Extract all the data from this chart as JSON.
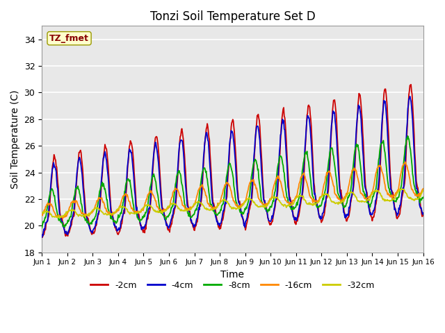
{
  "title": "Tonzi Soil Temperature Set D",
  "xlabel": "Time",
  "ylabel": "Soil Temperature (C)",
  "ylim": [
    18,
    35
  ],
  "xlim": [
    0,
    15
  ],
  "yticks": [
    18,
    20,
    22,
    24,
    26,
    28,
    30,
    32,
    34
  ],
  "xtick_labels": [
    "Jun 1",
    "Jun 2",
    "Jun 3",
    "Jun 4",
    "Jun 5",
    "Jun 6",
    "Jun 7",
    "Jun 8",
    "Jun 9",
    "Jun 10",
    "Jun 11",
    "Jun 12",
    "Jun 13",
    "Jun 14",
    "Jun 15",
    "Jun 16"
  ],
  "series_colors": [
    "#cc0000",
    "#0000cc",
    "#00aa00",
    "#ff8800",
    "#cccc00"
  ],
  "series_labels": [
    "-2cm",
    "-4cm",
    "-8cm",
    "-16cm",
    "-32cm"
  ],
  "background_color": "#e8e8e8",
  "grid_color": "#ffffff",
  "annotation_text": "TZ_fmet",
  "annotation_bg": "#ffffcc",
  "annotation_fg": "#880000",
  "fig_width": 6.4,
  "fig_height": 4.8,
  "dpi": 100
}
